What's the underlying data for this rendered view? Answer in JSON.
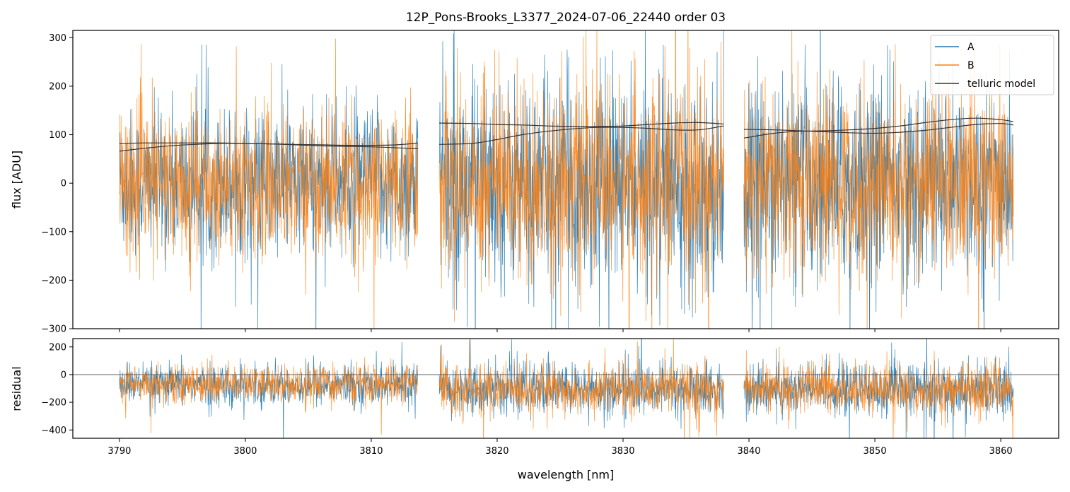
{
  "chart_data": {
    "title": "12P_Pons-Brooks_L3377_2024-07-06_22440  order 03",
    "legend": {
      "placement": "top-right",
      "entries": [
        {
          "label": "A",
          "color": "#1f77b4"
        },
        {
          "label": "B",
          "color": "#ff7f0e"
        },
        {
          "label": "telluric model",
          "color": "#333333"
        }
      ]
    },
    "panels": [
      {
        "name": "flux",
        "type": "line",
        "ylabel": "flux [ADU]",
        "xlim": [
          3786.3,
          3864.6
        ],
        "ylim": [
          -300,
          315
        ],
        "yticks": [
          -300,
          -200,
          -100,
          0,
          100,
          200,
          300
        ],
        "ytick_labels": [
          "−300",
          "−200",
          "−100",
          "0",
          "100",
          "200",
          "300"
        ],
        "segments": [
          {
            "x_range": [
              3790.0,
              3813.7
            ],
            "A_level": 0,
            "A_spread": 75,
            "B_level": 0,
            "B_spread": 75,
            "telluric": {
              "x": [
                3790,
                3792,
                3794,
                3796,
                3798,
                3800,
                3802,
                3804,
                3806,
                3808,
                3810,
                3812,
                3813.7
              ],
              "A": [
                82,
                83,
                83,
                83,
                83,
                82,
                81,
                80,
                79,
                78,
                78,
                79,
                83
              ],
              "B": [
                66,
                72,
                77,
                80,
                82,
                82,
                81,
                79,
                77,
                76,
                75,
                73,
                71
              ]
            }
          },
          {
            "x_range": [
              3815.4,
              3838.0
            ],
            "A_level": 0,
            "A_spread": 105,
            "B_level": 0,
            "B_spread": 100,
            "telluric": {
              "x": [
                3815.4,
                3818,
                3820,
                3822,
                3824,
                3826,
                3828,
                3830,
                3832,
                3834,
                3836,
                3838
              ],
              "A": [
                124,
                123,
                121,
                120,
                118,
                117,
                117,
                118,
                121,
                124,
                125,
                122
              ],
              "B": [
                80,
                82,
                90,
                100,
                107,
                112,
                115,
                115,
                113,
                110,
                110,
                118
              ]
            }
          },
          {
            "x_range": [
              3839.6,
              3861.0
            ],
            "A_level": 0,
            "A_spread": 100,
            "B_level": 0,
            "B_spread": 95,
            "telluric": {
              "x": [
                3839.6,
                3842,
                3844,
                3846,
                3848,
                3850,
                3852,
                3854,
                3856,
                3858,
                3860,
                3861
              ],
              "A": [
                93,
                103,
                107,
                108,
                110,
                113,
                118,
                125,
                131,
                134,
                131,
                127
              ],
              "B": [
                111,
                110,
                108,
                106,
                104,
                103,
                105,
                109,
                115,
                121,
                123,
                120
              ]
            }
          }
        ]
      },
      {
        "name": "residual",
        "type": "line",
        "ylabel": "residual",
        "xlim": [
          3786.3,
          3864.6
        ],
        "ylim": [
          -460,
          260
        ],
        "yticks": [
          -400,
          -200,
          0,
          200
        ],
        "ytick_labels": [
          "−400",
          "−200",
          "0",
          "200"
        ],
        "reference_line": 0,
        "segments": [
          {
            "x_range": [
              3790.0,
              3813.7
            ],
            "level": -75,
            "spread": 70
          },
          {
            "x_range": [
              3815.4,
              3838.0
            ],
            "level": -110,
            "spread": 90
          },
          {
            "x_range": [
              3839.6,
              3861.0
            ],
            "level": -110,
            "spread": 90
          }
        ]
      }
    ],
    "xlabel": "wavelength [nm]",
    "xticks": [
      3790,
      3800,
      3810,
      3820,
      3830,
      3840,
      3850,
      3860
    ],
    "xtick_labels": [
      "3790",
      "3800",
      "3810",
      "3820",
      "3830",
      "3840",
      "3850",
      "3860"
    ],
    "grid": false
  }
}
